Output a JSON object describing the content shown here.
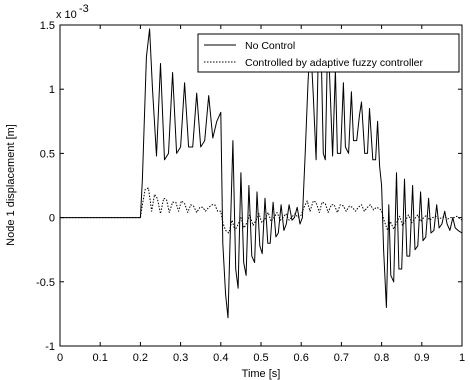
{
  "chart_data": {
    "type": "line",
    "title": "",
    "xlabel": "Time [s]",
    "ylabel": "Node 1 displacement [m]",
    "y_multiplier_base": "x 10",
    "y_multiplier_exponent": "-3",
    "xlim": [
      0,
      1
    ],
    "ylim": [
      -1,
      1.5
    ],
    "x_ticks": [
      0,
      0.1,
      0.2,
      0.3,
      0.4,
      0.5,
      0.6,
      0.7,
      0.8,
      0.9,
      1
    ],
    "x_tick_labels": [
      "0",
      "0.1",
      "0.2",
      "0.3",
      "0.4",
      "0.5",
      "0.6",
      "0.7",
      "0.8",
      "0.9",
      "1"
    ],
    "y_ticks": [
      -1,
      -0.5,
      0,
      0.5,
      1,
      1.5
    ],
    "y_tick_labels": [
      "-1",
      "-0.5",
      "0",
      "0.5",
      "1",
      "1.5"
    ],
    "grid": false,
    "legend_position": "top-right",
    "series": [
      {
        "name": "No Control",
        "color": "#000000",
        "dash": "solid",
        "x": [
          0,
          0.2,
          0.205,
          0.215,
          0.223,
          0.23,
          0.24,
          0.25,
          0.26,
          0.27,
          0.28,
          0.29,
          0.3,
          0.31,
          0.32,
          0.33,
          0.34,
          0.35,
          0.36,
          0.37,
          0.38,
          0.39,
          0.4,
          0.405,
          0.412,
          0.418,
          0.423,
          0.43,
          0.437,
          0.443,
          0.45,
          0.457,
          0.463,
          0.47,
          0.477,
          0.484,
          0.49,
          0.497,
          0.503,
          0.51,
          0.517,
          0.523,
          0.53,
          0.537,
          0.543,
          0.55,
          0.557,
          0.563,
          0.57,
          0.577,
          0.583,
          0.59,
          0.597,
          0.603,
          0.61,
          0.617,
          0.623,
          0.63,
          0.637,
          0.643,
          0.65,
          0.655,
          0.66,
          0.665,
          0.67,
          0.678,
          0.685,
          0.69,
          0.698,
          0.705,
          0.71,
          0.718,
          0.725,
          0.73,
          0.738,
          0.745,
          0.75,
          0.758,
          0.765,
          0.77,
          0.778,
          0.785,
          0.79,
          0.795,
          0.8,
          0.805,
          0.812,
          0.818,
          0.823,
          0.83,
          0.837,
          0.843,
          0.85,
          0.857,
          0.863,
          0.87,
          0.877,
          0.883,
          0.89,
          0.897,
          0.903,
          0.91,
          0.917,
          0.923,
          0.93,
          0.937,
          0.943,
          0.95,
          0.957,
          0.963,
          0.97,
          0.977,
          0.983,
          0.99,
          1
        ],
        "y": [
          0,
          0,
          0.3,
          1.25,
          1.47,
          1.0,
          0.48,
          1.2,
          0.45,
          0.5,
          1.13,
          0.5,
          0.55,
          1.05,
          0.55,
          0.55,
          0.97,
          0.55,
          0.6,
          0.95,
          0.62,
          0.75,
          0.82,
          -0.2,
          -0.6,
          -0.78,
          -0.2,
          0.6,
          -0.4,
          -0.55,
          0.35,
          -0.35,
          -0.45,
          0.25,
          -0.3,
          -0.35,
          0.2,
          -0.22,
          -0.28,
          0.15,
          -0.2,
          -0.2,
          0.12,
          -0.15,
          -0.12,
          0.1,
          -0.1,
          -0.05,
          0.1,
          -0.02,
          0.0,
          0.08,
          -0.05,
          0.0,
          0.5,
          1.05,
          1.38,
          0.95,
          0.45,
          1.35,
          1.25,
          0.5,
          0.45,
          1.25,
          1.17,
          0.48,
          1.15,
          0.5,
          0.5,
          1.05,
          0.55,
          0.5,
          0.98,
          0.6,
          0.6,
          0.8,
          0.9,
          0.5,
          0.5,
          0.85,
          0.45,
          0.45,
          0.75,
          0.4,
          0.25,
          -0.25,
          -0.7,
          0.1,
          -0.45,
          -0.5,
          0.35,
          -0.4,
          -0.4,
          0.3,
          -0.3,
          -0.3,
          0.25,
          -0.25,
          -0.22,
          0.2,
          -0.18,
          -0.15,
          0.15,
          -0.12,
          -0.1,
          0.1,
          -0.08,
          -0.05,
          0.05,
          -0.05,
          -0.1,
          0.0,
          -0.08,
          -0.1,
          -0.12
        ]
      },
      {
        "name": "Controlled by adaptive fuzzy controller",
        "color": "#000000",
        "dash": "dotted",
        "x": [
          0,
          0.2,
          0.205,
          0.212,
          0.22,
          0.228,
          0.235,
          0.242,
          0.25,
          0.258,
          0.265,
          0.272,
          0.28,
          0.288,
          0.295,
          0.302,
          0.31,
          0.318,
          0.325,
          0.332,
          0.34,
          0.348,
          0.355,
          0.362,
          0.37,
          0.378,
          0.385,
          0.392,
          0.4,
          0.405,
          0.412,
          0.42,
          0.428,
          0.435,
          0.442,
          0.45,
          0.458,
          0.465,
          0.472,
          0.48,
          0.488,
          0.495,
          0.502,
          0.51,
          0.518,
          0.525,
          0.532,
          0.54,
          0.548,
          0.555,
          0.562,
          0.57,
          0.578,
          0.585,
          0.592,
          0.6,
          0.607,
          0.615,
          0.622,
          0.63,
          0.637,
          0.645,
          0.652,
          0.66,
          0.667,
          0.675,
          0.682,
          0.69,
          0.697,
          0.705,
          0.712,
          0.72,
          0.727,
          0.735,
          0.742,
          0.75,
          0.757,
          0.765,
          0.772,
          0.78,
          0.787,
          0.795,
          0.8,
          0.807,
          0.815,
          0.822,
          0.83,
          0.837,
          0.845,
          0.852,
          0.86,
          0.867,
          0.875,
          0.882,
          0.89,
          0.897,
          0.905,
          0.912,
          0.92,
          0.927,
          0.935,
          0.942,
          0.95,
          0.957,
          0.965,
          0.972,
          0.98,
          0.987,
          1
        ],
        "y": [
          0,
          0,
          0.1,
          0.22,
          0.23,
          0.05,
          0.18,
          0.15,
          0.03,
          0.15,
          0.14,
          0.04,
          0.12,
          0.12,
          0.05,
          0.13,
          0.11,
          0.04,
          0.1,
          0.09,
          0.04,
          0.08,
          0.08,
          0.05,
          0.08,
          0.1,
          0.1,
          0.05,
          0.05,
          -0.04,
          -0.1,
          -0.12,
          -0.02,
          -0.1,
          -0.06,
          0.0,
          -0.08,
          -0.04,
          0.02,
          -0.06,
          -0.02,
          0.03,
          -0.04,
          -0.01,
          0.04,
          -0.03,
          0.0,
          0.04,
          -0.02,
          0.0,
          0.03,
          -0.02,
          0.01,
          0.03,
          0.0,
          0.02,
          0.08,
          0.13,
          0.05,
          0.13,
          0.12,
          0.04,
          0.12,
          0.11,
          0.04,
          0.1,
          0.1,
          0.04,
          0.1,
          0.09,
          0.05,
          0.09,
          0.08,
          0.05,
          0.08,
          0.1,
          0.05,
          0.08,
          0.1,
          0.06,
          0.08,
          0.07,
          0.05,
          -0.03,
          -0.1,
          -0.03,
          -0.09,
          -0.04,
          0.01,
          -0.06,
          -0.02,
          0.02,
          -0.04,
          -0.01,
          0.02,
          -0.03,
          0.0,
          0.02,
          -0.02,
          0.0,
          0.01,
          -0.01,
          0.0,
          0.01,
          -0.01,
          0.0,
          0.0,
          0.01,
          -0.02
        ]
      }
    ]
  }
}
